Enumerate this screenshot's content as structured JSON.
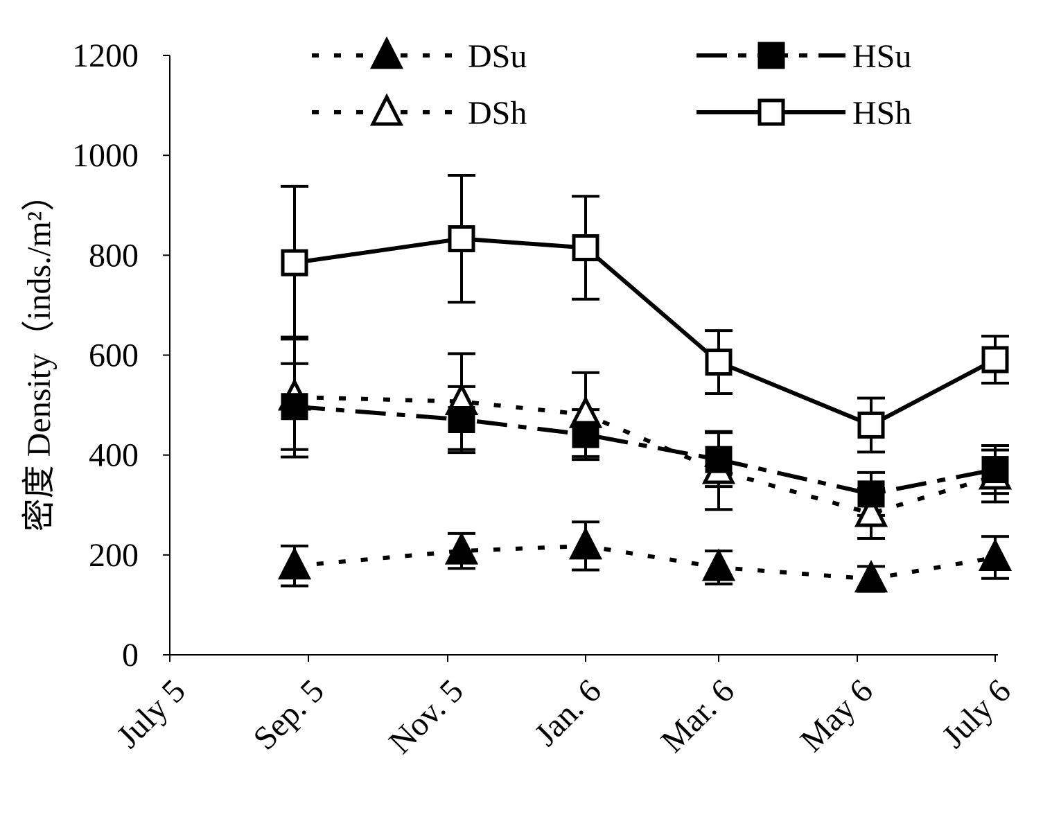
{
  "chart_data": {
    "type": "line",
    "x": [
      "July 5",
      "Sep. 5",
      "Nov. 5",
      "Jan. 6",
      "Mar. 6",
      "May 6",
      "July 6"
    ],
    "ylabel": "密度 Density（inds./m²）",
    "ylim": [
      0,
      1200
    ],
    "yticks": [
      "0",
      "200",
      "400",
      "600",
      "800",
      "1000",
      "1200"
    ],
    "grid": false,
    "legend_position": "top",
    "series": [
      {
        "name": "DSu",
        "style": "dotted",
        "marker": "filled-triangle",
        "values": [
          null,
          178,
          208,
          218,
          175,
          152,
          195
        ],
        "err": [
          null,
          40,
          35,
          48,
          33,
          25,
          42
        ]
      },
      {
        "name": "HSu",
        "style": "dash-dot",
        "marker": "filled-square",
        "values": [
          null,
          497,
          471,
          441,
          391,
          322,
          371
        ],
        "err": [
          null,
          86,
          66,
          50,
          54,
          43,
          48
        ]
      },
      {
        "name": "DSh",
        "style": "dotted",
        "marker": "open-triangle",
        "values": [
          null,
          516,
          507,
          481,
          369,
          283,
          358
        ],
        "err": [
          null,
          120,
          96,
          84,
          78,
          50,
          52
        ]
      },
      {
        "name": "HSh",
        "style": "solid",
        "marker": "open-square",
        "values": [
          null,
          785,
          833,
          815,
          586,
          460,
          591
        ],
        "err": [
          null,
          153,
          127,
          103,
          63,
          54,
          47
        ]
      }
    ]
  }
}
